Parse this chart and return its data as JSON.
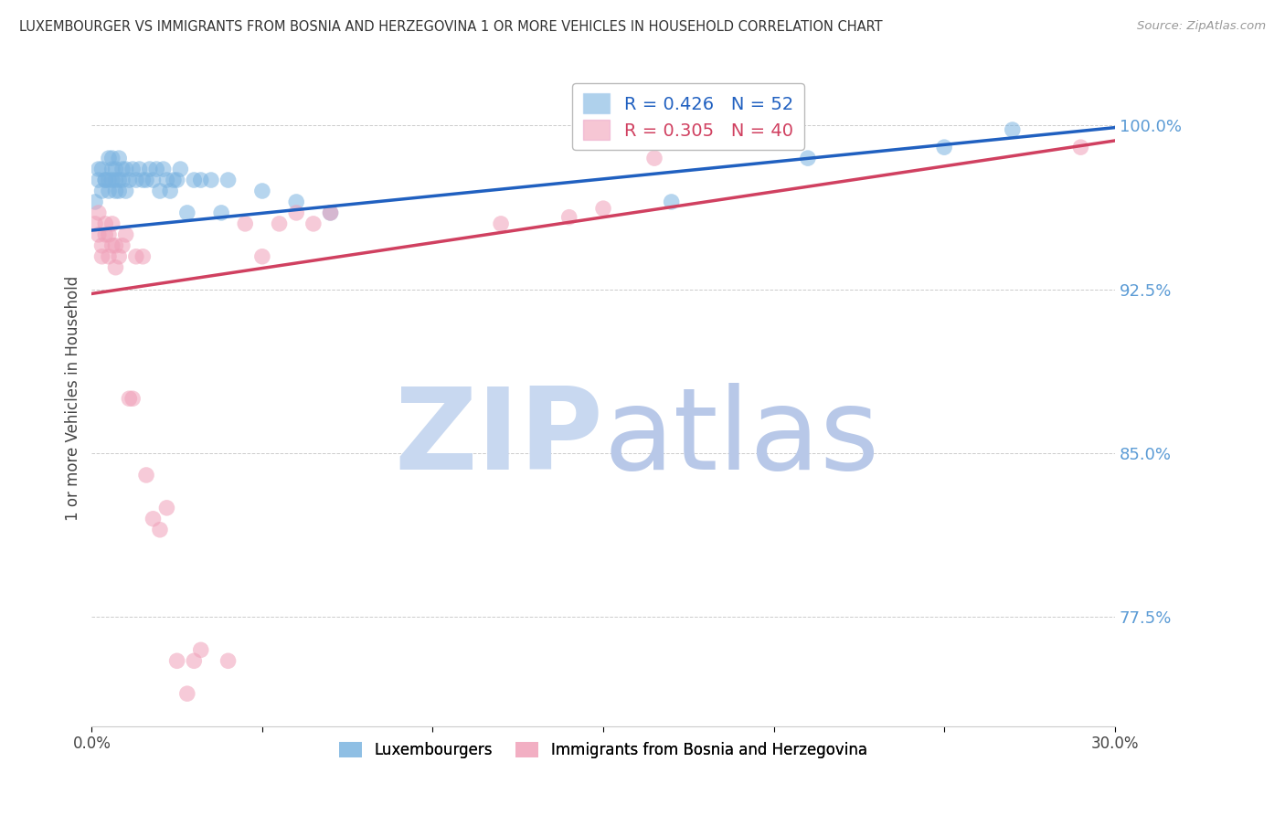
{
  "title": "LUXEMBOURGER VS IMMIGRANTS FROM BOSNIA AND HERZEGOVINA 1 OR MORE VEHICLES IN HOUSEHOLD CORRELATION CHART",
  "source": "Source: ZipAtlas.com",
  "ylabel": "1 or more Vehicles in Household",
  "blue_label": "Luxembourgers",
  "pink_label": "Immigrants from Bosnia and Herzegovina",
  "blue_R": 0.426,
  "blue_N": 52,
  "pink_R": 0.305,
  "pink_N": 40,
  "xlim": [
    0.0,
    0.3
  ],
  "ylim": [
    0.725,
    1.025
  ],
  "yticks": [
    0.775,
    0.85,
    0.925,
    1.0
  ],
  "ytick_labels": [
    "77.5%",
    "85.0%",
    "92.5%",
    "100.0%"
  ],
  "xticks": [
    0.0,
    0.05,
    0.1,
    0.15,
    0.2,
    0.25,
    0.3
  ],
  "xtick_labels": [
    "0.0%",
    "",
    "",
    "",
    "",
    "",
    "30.0%"
  ],
  "blue_color": "#7ab3e0",
  "pink_color": "#f0a0b8",
  "blue_line_color": "#2060c0",
  "pink_line_color": "#d04060",
  "watermark_zip_color": "#c8d8f0",
  "watermark_atlas_color": "#b8c8e8",
  "background_color": "#ffffff",
  "grid_color": "#cccccc",
  "ytick_color": "#5b9bd5",
  "blue_x": [
    0.001,
    0.002,
    0.002,
    0.003,
    0.003,
    0.004,
    0.004,
    0.005,
    0.005,
    0.005,
    0.006,
    0.006,
    0.006,
    0.007,
    0.007,
    0.007,
    0.008,
    0.008,
    0.008,
    0.009,
    0.009,
    0.01,
    0.01,
    0.011,
    0.012,
    0.013,
    0.014,
    0.015,
    0.016,
    0.017,
    0.018,
    0.019,
    0.02,
    0.021,
    0.022,
    0.023,
    0.024,
    0.025,
    0.026,
    0.028,
    0.03,
    0.032,
    0.035,
    0.038,
    0.04,
    0.05,
    0.06,
    0.07,
    0.17,
    0.21,
    0.25,
    0.27
  ],
  "blue_y": [
    0.965,
    0.98,
    0.975,
    0.97,
    0.98,
    0.975,
    0.975,
    0.985,
    0.975,
    0.97,
    0.975,
    0.98,
    0.985,
    0.97,
    0.98,
    0.975,
    0.975,
    0.985,
    0.97,
    0.98,
    0.975,
    0.97,
    0.98,
    0.975,
    0.98,
    0.975,
    0.98,
    0.975,
    0.975,
    0.98,
    0.975,
    0.98,
    0.97,
    0.98,
    0.975,
    0.97,
    0.975,
    0.975,
    0.98,
    0.96,
    0.975,
    0.975,
    0.975,
    0.96,
    0.975,
    0.97,
    0.965,
    0.96,
    0.965,
    0.985,
    0.99,
    0.998
  ],
  "pink_x": [
    0.001,
    0.002,
    0.002,
    0.003,
    0.003,
    0.004,
    0.004,
    0.005,
    0.005,
    0.006,
    0.006,
    0.007,
    0.007,
    0.008,
    0.009,
    0.01,
    0.011,
    0.012,
    0.013,
    0.015,
    0.016,
    0.018,
    0.02,
    0.022,
    0.025,
    0.028,
    0.03,
    0.032,
    0.04,
    0.045,
    0.05,
    0.055,
    0.06,
    0.065,
    0.07,
    0.12,
    0.14,
    0.15,
    0.165,
    0.29
  ],
  "pink_y": [
    0.955,
    0.96,
    0.95,
    0.94,
    0.945,
    0.95,
    0.955,
    0.94,
    0.95,
    0.945,
    0.955,
    0.935,
    0.945,
    0.94,
    0.945,
    0.95,
    0.875,
    0.875,
    0.94,
    0.94,
    0.84,
    0.82,
    0.815,
    0.825,
    0.755,
    0.74,
    0.755,
    0.76,
    0.755,
    0.955,
    0.94,
    0.955,
    0.96,
    0.955,
    0.96,
    0.955,
    0.958,
    0.962,
    0.985,
    0.99
  ],
  "blue_line_x0": 0.0,
  "blue_line_y0": 0.952,
  "blue_line_x1": 0.3,
  "blue_line_y1": 0.999,
  "pink_line_x0": 0.0,
  "pink_line_y0": 0.923,
  "pink_line_x1": 0.3,
  "pink_line_y1": 0.993
}
